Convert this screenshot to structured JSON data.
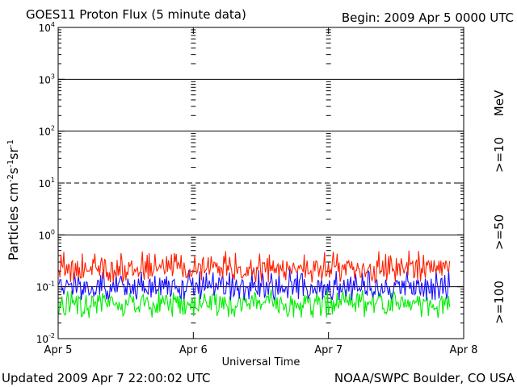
{
  "header": {
    "title": "GOES11 Proton Flux (5 minute data)",
    "begin": "Begin: 2009 Apr 5 0000 UTC"
  },
  "footer": {
    "updated": "Updated 2009 Apr  7 22:00:02 UTC",
    "credit": "NOAA/SWPC Boulder, CO USA"
  },
  "axis": {
    "xlabel": "Universal Time",
    "ylabel_main": "Particles cm",
    "ylabel_exp1": "-2",
    "ylabel_mid1": "s",
    "ylabel_exp2": "-1",
    "ylabel_mid2": "sr",
    "ylabel_exp3": "-1",
    "unit_label": "MeV",
    "y_tick_base": "10",
    "y_tick_exponents": [
      "-2",
      "-1",
      "0",
      "1",
      "2",
      "3",
      "4"
    ]
  },
  "chart_data": {
    "type": "line",
    "title": "GOES11 Proton Flux (5 minute data)",
    "xlabel": "Universal Time",
    "ylabel": "Particles cm-2 s-1 sr-1",
    "yscale": "log",
    "ylim": [
      0.01,
      10000
    ],
    "x_tick_labels": [
      "Apr 5",
      "Apr 6",
      "Apr 7",
      "Apr 8"
    ],
    "x_range_days": [
      0,
      3
    ],
    "data_end_day": 2.9,
    "horizontal_lines": [
      {
        "value": 0.1,
        "style": "solid"
      },
      {
        "value": 1,
        "style": "solid"
      },
      {
        "value": 10,
        "style": "dashed"
      },
      {
        "value": 100,
        "style": "solid"
      },
      {
        "value": 1000,
        "style": "solid"
      }
    ],
    "series": [
      {
        "name": ">=10",
        "color": "#ff2000",
        "typical_value": 0.22,
        "min": 0.12,
        "max": 0.5
      },
      {
        "name": ">=50",
        "color": "#1a10ff",
        "typical_value": 0.1,
        "min": 0.055,
        "max": 0.22
      },
      {
        "name": ">=100",
        "color": "#00ee00",
        "typical_value": 0.05,
        "min": 0.025,
        "max": 0.09
      }
    ]
  }
}
